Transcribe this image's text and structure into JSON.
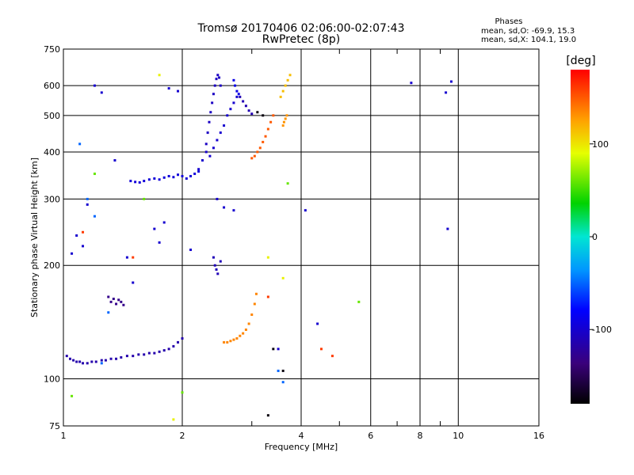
{
  "chart_data": {
    "type": "scatter",
    "title": "Tromsø 20170406 02:06:00-02:07:43",
    "subtitle": "RwPretec (8p)",
    "xlabel": "Frequency [MHz]",
    "ylabel": "Stationary phase Virtual Height [km]",
    "x_scale": "log",
    "y_scale": "log",
    "xlim": [
      1,
      16
    ],
    "ylim": [
      75,
      750
    ],
    "x_ticks": [
      1,
      2,
      4,
      6,
      8,
      10,
      16
    ],
    "x_minor": [
      3,
      5,
      7,
      9
    ],
    "y_ticks": [
      75,
      100,
      200,
      300,
      400,
      500,
      600,
      750
    ],
    "grid": true,
    "stats": {
      "heading": "Phases",
      "line_o": "mean, sd,O: -69.9, 15.3",
      "line_x": "mean, sd,X: 104.1, 19.0"
    },
    "colorbar": {
      "label": "[deg]",
      "range": [
        -180,
        180
      ],
      "ticks": [
        100,
        0,
        -100
      ]
    },
    "series": [
      {
        "phase": -115,
        "points": [
          [
            1.02,
            115
          ],
          [
            1.04,
            113
          ],
          [
            1.06,
            112
          ],
          [
            1.08,
            111
          ],
          [
            1.1,
            111
          ],
          [
            1.12,
            110
          ],
          [
            1.15,
            110
          ],
          [
            1.18,
            111
          ],
          [
            1.21,
            111
          ],
          [
            1.25,
            112
          ],
          [
            1.28,
            112
          ],
          [
            1.32,
            113
          ],
          [
            1.36,
            113
          ],
          [
            1.4,
            114
          ],
          [
            1.45,
            115
          ],
          [
            1.5,
            115
          ],
          [
            1.55,
            116
          ],
          [
            1.6,
            116
          ],
          [
            1.65,
            117
          ],
          [
            1.7,
            117
          ],
          [
            1.75,
            118
          ],
          [
            1.8,
            119
          ],
          [
            1.85,
            120
          ],
          [
            1.9,
            122
          ],
          [
            1.95,
            125
          ],
          [
            2.0,
            128
          ]
        ]
      },
      {
        "phase": -130,
        "points": [
          [
            1.3,
            165
          ],
          [
            1.32,
            160
          ],
          [
            1.34,
            163
          ],
          [
            1.36,
            158
          ],
          [
            1.38,
            162
          ],
          [
            1.4,
            160
          ],
          [
            1.42,
            157
          ]
        ]
      },
      {
        "phase": -95,
        "points": [
          [
            1.48,
            335
          ],
          [
            1.52,
            333
          ],
          [
            1.56,
            332
          ],
          [
            1.6,
            335
          ],
          [
            1.65,
            338
          ],
          [
            1.7,
            340
          ],
          [
            1.75,
            338
          ],
          [
            1.8,
            342
          ],
          [
            1.85,
            345
          ],
          [
            1.9,
            343
          ],
          [
            1.95,
            348
          ],
          [
            2.0,
            345
          ],
          [
            2.05,
            340
          ],
          [
            2.1,
            345
          ],
          [
            2.15,
            350
          ],
          [
            2.2,
            355
          ]
        ]
      },
      {
        "phase": -105,
        "points": [
          [
            2.3,
            420
          ],
          [
            2.32,
            450
          ],
          [
            2.34,
            480
          ],
          [
            2.36,
            510
          ],
          [
            2.38,
            540
          ],
          [
            2.4,
            570
          ],
          [
            2.42,
            600
          ],
          [
            2.44,
            625
          ],
          [
            2.46,
            640
          ],
          [
            2.48,
            630
          ],
          [
            2.5,
            600
          ]
        ]
      },
      {
        "phase": -100,
        "points": [
          [
            2.2,
            360
          ],
          [
            2.25,
            380
          ],
          [
            2.3,
            400
          ],
          [
            2.35,
            390
          ],
          [
            2.4,
            410
          ],
          [
            2.45,
            430
          ],
          [
            2.5,
            450
          ],
          [
            2.55,
            470
          ],
          [
            2.6,
            500
          ],
          [
            2.65,
            520
          ],
          [
            2.7,
            540
          ],
          [
            2.75,
            560
          ]
        ]
      },
      {
        "phase": -112,
        "points": [
          [
            2.8,
            560
          ],
          [
            2.85,
            545
          ],
          [
            2.9,
            530
          ],
          [
            2.95,
            515
          ],
          [
            3.0,
            505
          ]
        ]
      },
      {
        "phase": -90,
        "points": [
          [
            2.7,
            620
          ],
          [
            2.72,
            600
          ],
          [
            2.75,
            580
          ],
          [
            2.78,
            570
          ]
        ]
      },
      {
        "phase": -110,
        "points": [
          [
            2.4,
            210
          ],
          [
            2.42,
            200
          ],
          [
            2.44,
            195
          ],
          [
            2.46,
            190
          ],
          [
            2.5,
            205
          ]
        ]
      },
      {
        "phase": 135,
        "points": [
          [
            2.55,
            125
          ],
          [
            2.6,
            125
          ],
          [
            2.65,
            126
          ],
          [
            2.7,
            127
          ],
          [
            2.75,
            128
          ],
          [
            2.8,
            130
          ],
          [
            2.85,
            132
          ],
          [
            2.9,
            135
          ],
          [
            2.95,
            140
          ],
          [
            3.0,
            148
          ],
          [
            3.05,
            158
          ],
          [
            3.08,
            168
          ]
        ]
      },
      {
        "phase": 150,
        "points": [
          [
            3.0,
            385
          ],
          [
            3.05,
            390
          ],
          [
            3.1,
            400
          ],
          [
            3.15,
            410
          ],
          [
            3.2,
            425
          ],
          [
            3.25,
            440
          ],
          [
            3.3,
            460
          ],
          [
            3.35,
            480
          ],
          [
            3.4,
            500
          ]
        ]
      },
      {
        "phase": 115,
        "points": [
          [
            3.55,
            560
          ],
          [
            3.6,
            580
          ],
          [
            3.65,
            600
          ],
          [
            3.7,
            620
          ],
          [
            3.75,
            640
          ]
        ]
      },
      {
        "phase": 130,
        "points": [
          [
            3.6,
            470
          ],
          [
            3.62,
            480
          ],
          [
            3.65,
            490
          ],
          [
            3.68,
            500
          ]
        ]
      },
      {
        "phase": -100,
        "points": [
          [
            1.05,
            215
          ],
          [
            1.08,
            240
          ],
          [
            1.12,
            225
          ],
          [
            1.15,
            290
          ],
          [
            1.2,
            600
          ],
          [
            1.25,
            575
          ],
          [
            1.35,
            380
          ],
          [
            1.45,
            210
          ],
          [
            1.5,
            180
          ],
          [
            1.7,
            250
          ],
          [
            1.75,
            230
          ],
          [
            1.8,
            260
          ],
          [
            1.85,
            590
          ],
          [
            1.95,
            580
          ],
          [
            2.1,
            220
          ],
          [
            2.45,
            300
          ],
          [
            2.55,
            285
          ],
          [
            2.7,
            280
          ],
          [
            3.5,
            120
          ],
          [
            4.1,
            280
          ],
          [
            4.4,
            140
          ],
          [
            7.6,
            610
          ],
          [
            9.3,
            575
          ],
          [
            9.4,
            250
          ],
          [
            9.6,
            615
          ]
        ]
      },
      {
        "phase": -50,
        "points": [
          [
            1.1,
            420
          ],
          [
            1.15,
            300
          ],
          [
            1.2,
            270
          ],
          [
            1.25,
            110
          ],
          [
            1.3,
            150
          ],
          [
            3.5,
            105
          ],
          [
            3.6,
            98
          ]
        ]
      },
      {
        "phase": 60,
        "points": [
          [
            1.05,
            90
          ],
          [
            1.2,
            350
          ],
          [
            1.6,
            300
          ],
          [
            2.0,
            92
          ],
          [
            3.7,
            330
          ],
          [
            5.6,
            160
          ]
        ]
      },
      {
        "phase": 95,
        "points": [
          [
            1.75,
            640
          ],
          [
            1.9,
            78
          ],
          [
            3.3,
            210
          ],
          [
            3.6,
            185
          ]
        ]
      },
      {
        "phase": 160,
        "points": [
          [
            1.12,
            245
          ],
          [
            1.5,
            210
          ],
          [
            3.3,
            165
          ],
          [
            4.5,
            120
          ],
          [
            4.8,
            115
          ]
        ]
      },
      {
        "phase": -175,
        "points": [
          [
            3.1,
            510
          ],
          [
            3.2,
            500
          ],
          [
            3.3,
            80
          ],
          [
            3.6,
            105
          ],
          [
            3.4,
            120
          ]
        ]
      }
    ]
  }
}
